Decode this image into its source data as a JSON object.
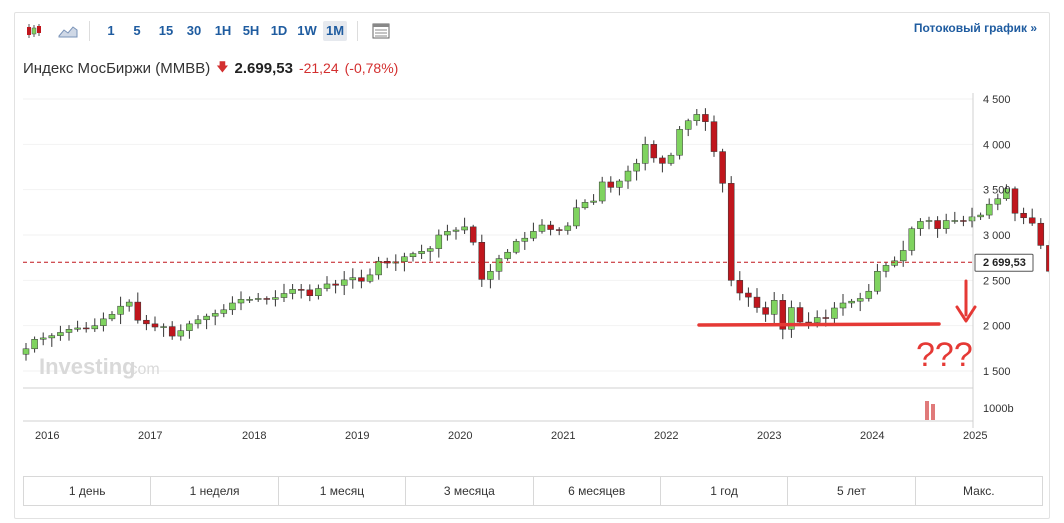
{
  "toolbar": {
    "candle_icon": "candlestick-icon",
    "area_icon": "area-chart-icon",
    "intervals": [
      "1",
      "5",
      "15",
      "30",
      "1H",
      "5H",
      "1D",
      "1W",
      "1M"
    ],
    "active_interval": "1M",
    "table_icon": "table-icon",
    "stream_link": "Потоковый график »"
  },
  "header": {
    "name": "Индекс МосБиржи (MMBB)",
    "arrow": "🡇",
    "price": "2.699,53",
    "change": "-21,24",
    "change_pct": "(-0,78%)"
  },
  "colors": {
    "up": "#7fd35f",
    "down": "#c0161d",
    "annotation": "#e53935",
    "price_line": "#c0161d",
    "link": "#1f5ca0"
  },
  "watermark": {
    "brand": "Investing",
    "suffix": ".com"
  },
  "annotation": {
    "text": "???"
  },
  "price_label": "2 699,53",
  "volume_label": "1000b",
  "periods": [
    "1 день",
    "1 неделя",
    "1 месяц",
    "3 месяца",
    "6 месяцев",
    "1 год",
    "5 лет",
    "Макс."
  ],
  "chart_data": {
    "type": "candlestick",
    "title": "",
    "y_ticks": [
      "4 500",
      "4 000",
      "3 500",
      "3 000",
      "2 500",
      "2 000",
      "1 500"
    ],
    "ylim": [
      1500,
      4500
    ],
    "x_ticks": [
      "2016",
      "2017",
      "2018",
      "2019",
      "2020",
      "2021",
      "2022",
      "2023",
      "2024",
      "2025"
    ],
    "last_price": 2699.53,
    "series_close": [
      1745,
      1850,
      1865,
      1890,
      1925,
      1960,
      1975,
      1965,
      2000,
      2075,
      2125,
      2215,
      2260,
      2060,
      2020,
      1985,
      1990,
      1885,
      1945,
      2020,
      2065,
      2105,
      2135,
      2175,
      2250,
      2290,
      2290,
      2300,
      2290,
      2310,
      2355,
      2400,
      2395,
      2330,
      2410,
      2460,
      2445,
      2505,
      2530,
      2490,
      2560,
      2710,
      2690,
      2705,
      2760,
      2795,
      2820,
      2850,
      3000,
      3040,
      3055,
      3090,
      2920,
      2510,
      2600,
      2740,
      2810,
      2930,
      2965,
      3040,
      3110,
      3060,
      3050,
      3100,
      3300,
      3360,
      3375,
      3585,
      3525,
      3595,
      3705,
      3790,
      4000,
      3850,
      3790,
      3880,
      4165,
      4260,
      4330,
      4250,
      3920,
      3570,
      2500,
      2360,
      2315,
      2200,
      2125,
      2280,
      1960,
      2200,
      2040,
      2035,
      2090,
      2080,
      2195,
      2250,
      2270,
      2300,
      2380,
      2600,
      2665,
      2715,
      2830,
      3070,
      3150,
      3160,
      3070,
      3160,
      3160,
      3155,
      3200,
      3220,
      3340,
      3400,
      3510,
      3240,
      3190,
      3130,
      2885,
      2600,
      2790,
      2760,
      2560,
      2699.53
    ]
  }
}
